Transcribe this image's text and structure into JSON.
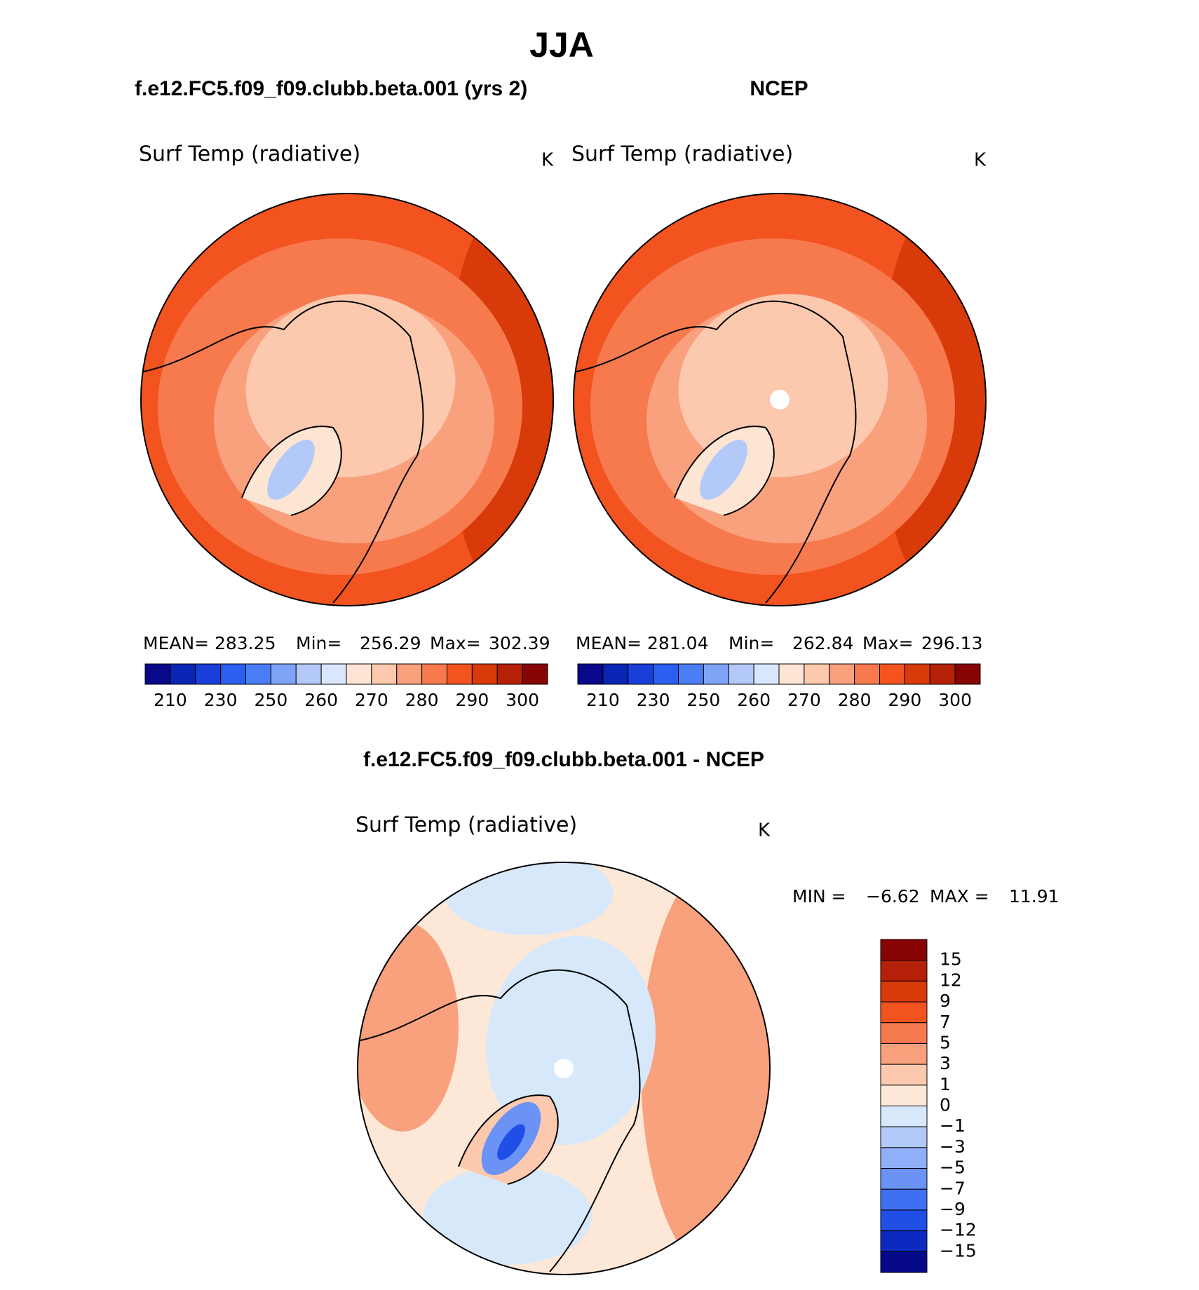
{
  "header": {
    "title": "JJA"
  },
  "panels": [
    {
      "case": "f.e12.FC5.f09_f09.clubb.beta.001 (yrs 2)",
      "variable": "Surf Temp (radiative)",
      "units": "K",
      "stats": [
        {
          "label": "MEAN=",
          "value": 283.25
        },
        {
          "label": "Min=",
          "value": 256.29
        },
        {
          "label": "Max=",
          "value": 302.39
        }
      ],
      "colorbar": {
        "colors": [
          "#08088a",
          "#0a24b4",
          "#1a3fd8",
          "#2a5ff0",
          "#4a7ef5",
          "#7fa3f7",
          "#b3c9f9",
          "#d9e6fb",
          "#fde5d4",
          "#fcc9ae",
          "#f9a07d",
          "#f77a4f",
          "#f2531f",
          "#d83a0a",
          "#b52008",
          "#880404"
        ],
        "labels": [
          "210",
          "230",
          "250",
          "260",
          "270",
          "280",
          "290",
          "300"
        ]
      }
    },
    {
      "case": "NCEP",
      "variable": "Surf Temp (radiative)",
      "units": "K",
      "stats": [
        {
          "label": "MEAN=",
          "value": 281.04
        },
        {
          "label": "Min=",
          "value": 262.84
        },
        {
          "label": "Max=",
          "value": 296.13
        }
      ],
      "colorbar": {
        "colors": [
          "#08088a",
          "#0a24b4",
          "#1a3fd8",
          "#2a5ff0",
          "#4a7ef5",
          "#7fa3f7",
          "#b3c9f9",
          "#d9e6fb",
          "#fde5d4",
          "#fcc9ae",
          "#f9a07d",
          "#f77a4f",
          "#f2531f",
          "#d83a0a",
          "#b52008",
          "#880404"
        ],
        "labels": [
          "210",
          "230",
          "250",
          "260",
          "270",
          "280",
          "290",
          "300"
        ]
      }
    }
  ],
  "difference": {
    "title": "f.e12.FC5.f09_f09.clubb.beta.001 - NCEP",
    "variable": "Surf Temp (radiative)",
    "units": "K",
    "stats": [
      {
        "label": "MIN =",
        "value": "−6.62"
      },
      {
        "label": "MAX =",
        "value": 11.91
      }
    ],
    "colorbar": {
      "colors": [
        "#880404",
        "#b52008",
        "#d83a0a",
        "#f2531f",
        "#f77a4f",
        "#f9a07d",
        "#fcc9ae",
        "#fde8d8",
        "#d7e8fb",
        "#b3c9f9",
        "#8fb0f8",
        "#6b93f6",
        "#3f70f2",
        "#1f4fe6",
        "#0c2ac0",
        "#06088a"
      ],
      "labels": [
        "15",
        "12",
        "9",
        "7",
        "5",
        "3",
        "1",
        "0",
        "−1",
        "−3",
        "−5",
        "−7",
        "−9",
        "−12",
        "−15"
      ]
    }
  }
}
